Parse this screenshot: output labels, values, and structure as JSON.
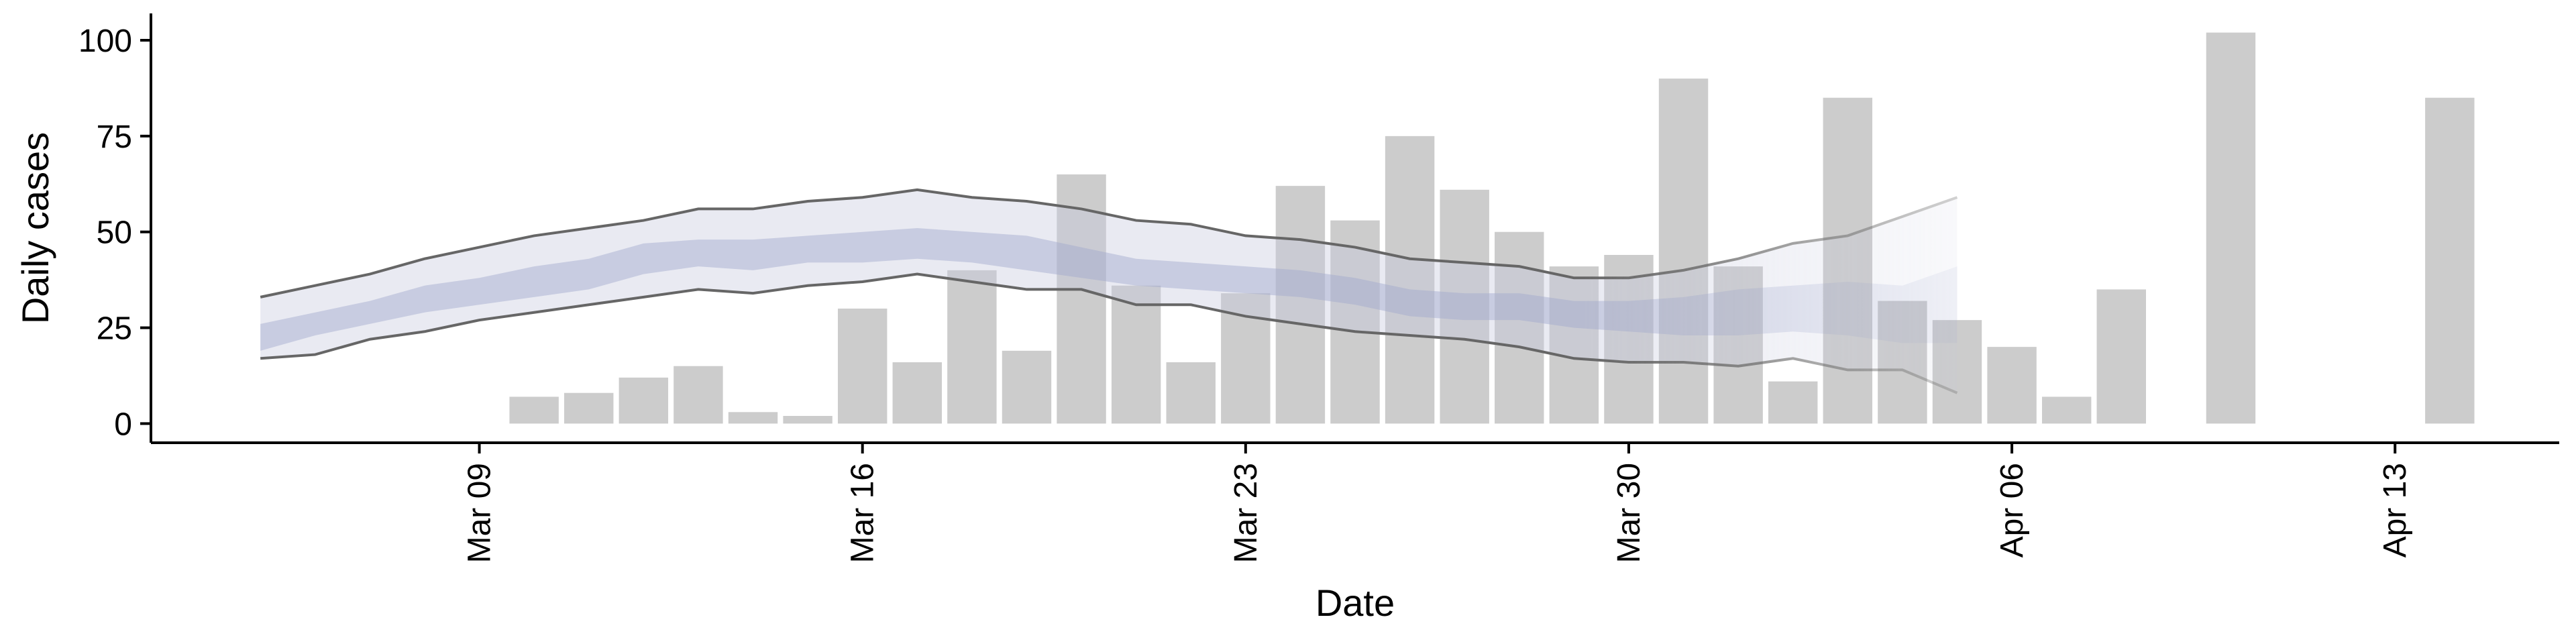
{
  "chart_data": {
    "type": "bar",
    "title": "",
    "xlabel": "Date",
    "ylabel": "Daily cases",
    "x_ticks": [
      "Mar 09",
      "Mar 16",
      "Mar 23",
      "Mar 30",
      "Apr 06",
      "Apr 13"
    ],
    "x_tick_dates": [
      "2020-03-09",
      "2020-03-16",
      "2020-03-23",
      "2020-03-30",
      "2020-04-06",
      "2020-04-13"
    ],
    "y_ticks": [
      0,
      25,
      50,
      75,
      100
    ],
    "xlim": [
      "2020-03-03",
      "2020-04-16"
    ],
    "ylim": [
      -5,
      107
    ],
    "grid": false,
    "legend": "none",
    "colors": {
      "bars": "#cccccc",
      "band_outer": "#c8cbdf",
      "band_inner": "#9fa9cc",
      "bound_lines": "#666666",
      "axis": "#000000"
    },
    "observed_cases": {
      "dates": [
        "2020-03-10",
        "2020-03-11",
        "2020-03-12",
        "2020-03-13",
        "2020-03-14",
        "2020-03-15",
        "2020-03-16",
        "2020-03-17",
        "2020-03-18",
        "2020-03-19",
        "2020-03-20",
        "2020-03-21",
        "2020-03-22",
        "2020-03-23",
        "2020-03-24",
        "2020-03-25",
        "2020-03-26",
        "2020-03-27",
        "2020-03-28",
        "2020-03-29",
        "2020-03-30",
        "2020-03-31",
        "2020-04-01",
        "2020-04-02",
        "2020-04-03",
        "2020-04-04",
        "2020-04-05",
        "2020-04-06",
        "2020-04-07",
        "2020-04-08",
        "2020-04-10",
        "2020-04-14"
      ],
      "values": [
        7,
        8,
        12,
        15,
        3,
        2,
        30,
        16,
        40,
        19,
        65,
        36,
        16,
        34,
        62,
        53,
        75,
        61,
        50,
        41,
        44,
        90,
        41,
        11,
        85,
        32,
        27,
        20,
        7,
        35,
        102,
        85
      ]
    },
    "estimate_band": {
      "dates": [
        "2020-03-05",
        "2020-03-06",
        "2020-03-07",
        "2020-03-08",
        "2020-03-09",
        "2020-03-10",
        "2020-03-11",
        "2020-03-12",
        "2020-03-13",
        "2020-03-14",
        "2020-03-15",
        "2020-03-16",
        "2020-03-17",
        "2020-03-18",
        "2020-03-19",
        "2020-03-20",
        "2020-03-21",
        "2020-03-22",
        "2020-03-23",
        "2020-03-24",
        "2020-03-25",
        "2020-03-26",
        "2020-03-27",
        "2020-03-28",
        "2020-03-29",
        "2020-03-30",
        "2020-03-31",
        "2020-04-01",
        "2020-04-02",
        "2020-04-03",
        "2020-04-04",
        "2020-04-05"
      ],
      "upper": [
        33,
        36,
        39,
        43,
        46,
        49,
        51,
        53,
        56,
        56,
        58,
        59,
        61,
        59,
        58,
        56,
        53,
        52,
        49,
        48,
        46,
        43,
        42,
        41,
        38,
        38,
        40,
        43,
        47,
        49,
        54,
        59
      ],
      "lower": [
        17,
        18,
        22,
        24,
        27,
        29,
        31,
        33,
        35,
        34,
        36,
        37,
        39,
        37,
        35,
        35,
        31,
        31,
        28,
        26,
        24,
        23,
        22,
        20,
        17,
        16,
        16,
        15,
        17,
        14,
        14,
        8
      ],
      "inner_upper": [
        26,
        29,
        32,
        36,
        38,
        41,
        43,
        47,
        48,
        48,
        49,
        50,
        51,
        50,
        49,
        46,
        43,
        42,
        41,
        40,
        38,
        35,
        34,
        34,
        32,
        32,
        33,
        35,
        36,
        37,
        36,
        41
      ],
      "inner_lower": [
        19,
        23,
        26,
        29,
        31,
        33,
        35,
        39,
        41,
        40,
        42,
        42,
        43,
        42,
        40,
        38,
        36,
        35,
        34,
        33,
        31,
        28,
        27,
        27,
        25,
        24,
        23,
        23,
        24,
        23,
        21,
        21
      ]
    }
  }
}
